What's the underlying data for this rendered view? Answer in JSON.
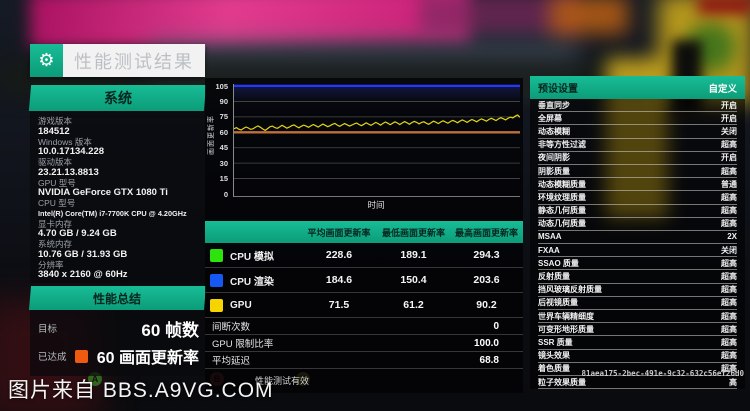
{
  "accent": {
    "teal": "#10b38c",
    "orange_line": "#c0703a",
    "cap_blue": "#2635ff",
    "fps_yellow": "#e3d515"
  },
  "title": {
    "label": "性能测试结果",
    "icon": "gear-icon"
  },
  "system_panel": {
    "header": "系统",
    "entries": [
      {
        "label": "游戏版本",
        "value": "184512"
      },
      {
        "label": "Windows 版本",
        "value": "10.0.17134.228"
      },
      {
        "label": "驱动版本",
        "value": "23.21.13.8813"
      },
      {
        "label": "GPU 型号",
        "value": "NVIDIA GeForce GTX 1080 Ti"
      },
      {
        "label": "CPU 型号",
        "value": "Intel(R) Core(TM) i7-7700K CPU @ 4.20GHz"
      },
      {
        "label": "显卡内存",
        "value": "4.70 GB / 9.24 GB"
      },
      {
        "label": "系统内存",
        "value": "10.76 GB / 31.93 GB"
      },
      {
        "label": "分辨率",
        "value": "3840 x 2160 @ 60Hz"
      }
    ]
  },
  "summary_panel": {
    "header": "性能总结",
    "target_label": "目标",
    "target_value": "60 帧数",
    "achieved_label": "已达成",
    "achieved_color": "#f05a10",
    "achieved_value": "60 画面更新率"
  },
  "chart_data": {
    "type": "line",
    "xlabel": "时间",
    "ylabel": "画面更新率",
    "ylim": [
      0,
      105
    ],
    "yticks": [
      0,
      15,
      30,
      45,
      60,
      75,
      90,
      105
    ],
    "grid": true,
    "cap_line": {
      "value": 105,
      "color": "#2635ff"
    },
    "target_line": {
      "value": 60,
      "color": "#c0703a"
    },
    "series": [
      {
        "name": "GPU 画面更新率",
        "color": "#e3d515",
        "values": [
          63.4,
          64.6,
          63.0,
          62.2,
          63.8,
          65.1,
          64.2,
          62.8,
          63.5,
          65.0,
          66.2,
          64.8,
          63.2,
          61.8,
          63.6,
          65.4,
          66.0,
          64.6,
          63.8,
          65.2,
          66.8,
          65.4,
          64.0,
          65.0,
          66.4,
          67.2,
          65.6,
          64.4,
          65.8,
          67.0,
          66.0,
          64.8,
          66.2,
          67.6,
          66.4,
          65.0,
          66.6,
          68.0,
          66.8,
          65.4,
          66.4,
          67.8,
          68.6,
          67.0,
          65.8,
          67.2,
          68.4,
          67.4,
          66.0,
          67.0,
          68.2,
          69.0,
          67.6,
          66.4,
          67.8,
          69.2,
          68.0,
          66.8,
          68.2,
          69.6,
          68.4,
          67.0,
          68.6,
          70.0,
          68.8,
          67.4,
          68.8,
          70.2,
          69.0,
          67.6,
          69.0,
          70.4,
          69.2,
          67.8,
          69.4,
          70.6,
          69.6,
          68.2,
          69.6,
          70.2,
          68.8,
          67.8,
          69.2,
          70.8,
          69.8,
          68.4,
          70.0,
          71.2,
          70.0,
          68.8,
          70.4,
          71.6,
          70.6,
          69.2,
          70.8,
          72.0,
          71.0,
          69.6,
          71.2,
          72.4,
          71.4,
          70.2,
          71.8,
          73.0,
          72.0,
          70.8,
          72.4,
          73.6,
          72.6,
          71.4,
          73.0,
          74.2,
          73.2,
          72.0,
          73.6,
          74.8,
          74.0,
          75.6,
          76.8,
          74.6
        ]
      }
    ]
  },
  "table": {
    "columns": [
      "平均画面更新率",
      "最低画面更新率",
      "最高画面更新率"
    ],
    "rows": [
      {
        "swatch": "#2ce40b",
        "name": "CPU 模拟",
        "values": [
          "228.6",
          "189.1",
          "294.3"
        ]
      },
      {
        "swatch": "#1658f3",
        "name": "CPU 渲染",
        "values": [
          "184.6",
          "150.4",
          "203.6"
        ]
      },
      {
        "swatch": "#f5d400",
        "name": "GPU",
        "values": [
          "71.5",
          "61.2",
          "90.2"
        ]
      }
    ]
  },
  "stats": [
    {
      "label": "间断次数",
      "value": "0"
    },
    {
      "label": "GPU 限制比率",
      "value": "100.0"
    },
    {
      "label": "平均延迟",
      "value": "68.8"
    }
  ],
  "validity_text": "性能测试有效",
  "settings_panel": {
    "header": "预设设置",
    "mode": "自定义",
    "items": [
      {
        "label": "垂直同步",
        "value": "开启"
      },
      {
        "label": "全屏幕",
        "value": "开启"
      },
      {
        "label": "动态模糊",
        "value": "关闭"
      },
      {
        "label": "非等方性过滤",
        "value": "超高"
      },
      {
        "label": "夜间阴影",
        "value": "开启"
      },
      {
        "label": "阴影质量",
        "value": "超高"
      },
      {
        "label": "动态模糊质量",
        "value": "普通"
      },
      {
        "label": "环境纹理质量",
        "value": "超高"
      },
      {
        "label": "静态几何质量",
        "value": "超高"
      },
      {
        "label": "动态几何质量",
        "value": "超高"
      },
      {
        "label": "MSAA",
        "value": "2X"
      },
      {
        "label": "FXAA",
        "value": "关闭"
      },
      {
        "label": "SSAO 质量",
        "value": "超高"
      },
      {
        "label": "反射质量",
        "value": "超高"
      },
      {
        "label": "挡风玻璃反射质量",
        "value": "超高"
      },
      {
        "label": "后视镜质量",
        "value": "超高"
      },
      {
        "label": "世界车辆精细度",
        "value": "超高"
      },
      {
        "label": "可变形地形质量",
        "value": "超高"
      },
      {
        "label": "SSR 质量",
        "value": "超高"
      },
      {
        "label": "镜头效果",
        "value": "超高"
      },
      {
        "label": "着色质量",
        "value": "超高"
      },
      {
        "label": "粒子效果质量",
        "value": "高"
      }
    ]
  },
  "guid": "81aea175-2bec-491e-9c32-632c56ef26d0",
  "watermark": "图片来自 BBS.A9VG.COM",
  "button_prompts": [
    {
      "button": "A",
      "color": "#3fae29"
    },
    {
      "button": "B",
      "color": "#c0392b"
    },
    {
      "button": "Y",
      "color": "#e0c020"
    }
  ]
}
